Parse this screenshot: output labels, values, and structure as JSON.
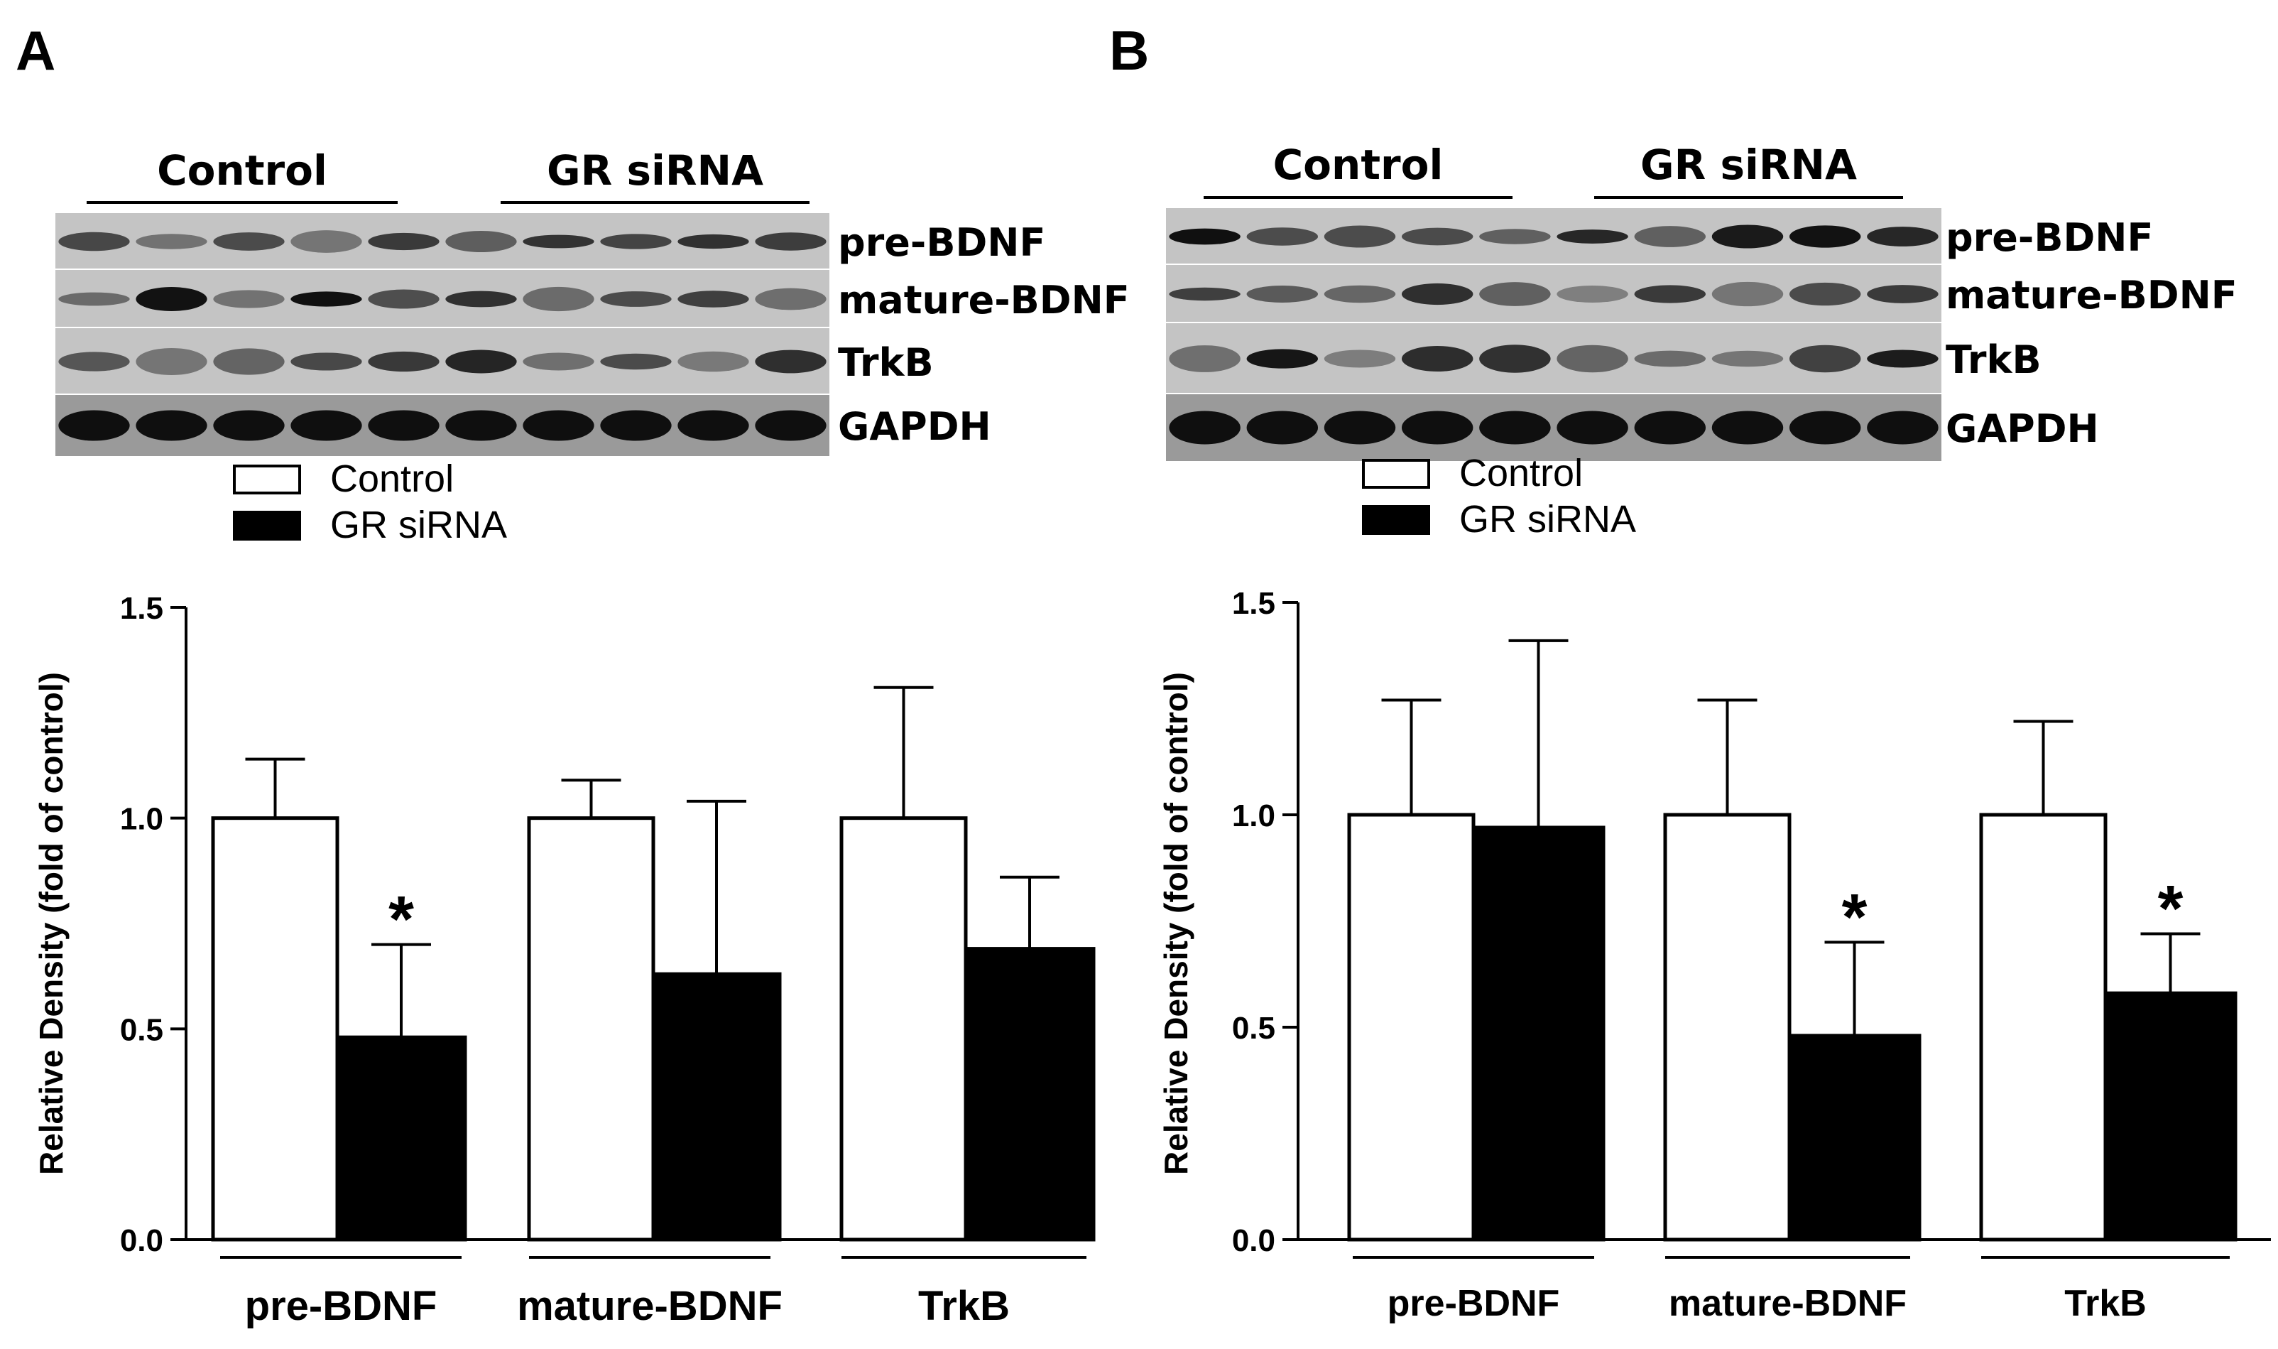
{
  "panels": [
    {
      "id": "A",
      "label": "A",
      "blot": {
        "groups": [
          "Control",
          "GR siRNA"
        ],
        "bands": [
          "pre-BDNF",
          "mature-BDNF",
          "TrkB",
          "GAPDH"
        ]
      },
      "legend": [
        "Control",
        "GR siRNA"
      ],
      "chart_data": {
        "type": "bar",
        "categories": [
          "pre-BDNF",
          "mature-BDNF",
          "TrkB"
        ],
        "series": [
          {
            "name": "Control",
            "values": [
              1.0,
              1.0,
              1.0
            ],
            "errors": [
              0.14,
              0.09,
              0.31
            ],
            "color": "#ffffff"
          },
          {
            "name": "GR siRNA",
            "values": [
              0.48,
              0.63,
              0.69
            ],
            "errors": [
              0.22,
              0.41,
              0.17
            ],
            "color": "#000000"
          }
        ],
        "significance": [
          {
            "series": "GR siRNA",
            "category": "pre-BDNF",
            "mark": "*"
          }
        ],
        "ylabel": "Relative Density (fold of control)",
        "ylim": [
          0,
          1.5
        ],
        "yticks": [
          "0.0",
          "0.5",
          "1.0",
          "1.5"
        ]
      }
    },
    {
      "id": "B",
      "label": "B",
      "blot": {
        "groups": [
          "Control",
          "GR siRNA"
        ],
        "bands": [
          "pre-BDNF",
          "mature-BDNF",
          "TrkB",
          "GAPDH"
        ]
      },
      "legend": [
        "Control",
        "GR siRNA"
      ],
      "chart_data": {
        "type": "bar",
        "categories": [
          "pre-BDNF",
          "mature-BDNF",
          "TrkB"
        ],
        "series": [
          {
            "name": "Control",
            "values": [
              1.0,
              1.0,
              1.0
            ],
            "errors": [
              0.27,
              0.27,
              0.22
            ],
            "color": "#ffffff"
          },
          {
            "name": "GR siRNA",
            "values": [
              0.97,
              0.48,
              0.58
            ],
            "errors": [
              0.44,
              0.22,
              0.14
            ],
            "color": "#000000"
          }
        ],
        "significance": [
          {
            "series": "GR siRNA",
            "category": "mature-BDNF",
            "mark": "*"
          },
          {
            "series": "GR siRNA",
            "category": "TrkB",
            "mark": "*"
          }
        ],
        "ylabel": "Relative Density (fold of control)",
        "ylim": [
          0,
          1.5
        ],
        "yticks": [
          "0.0",
          "0.5",
          "1.0",
          "1.5"
        ]
      }
    }
  ]
}
